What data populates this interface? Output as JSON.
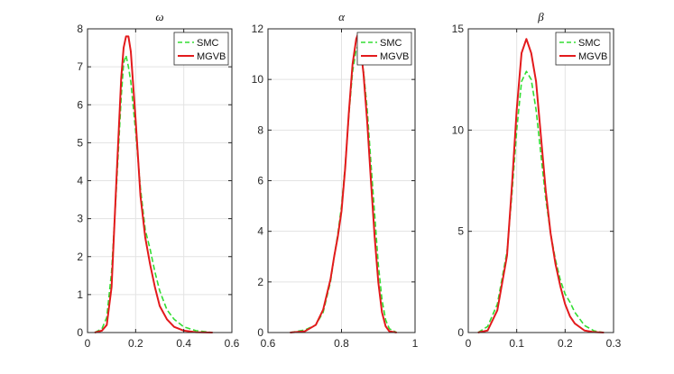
{
  "chart_data": [
    {
      "type": "line",
      "title": "ω",
      "xlim": [
        0,
        0.6
      ],
      "ylim": [
        0,
        8
      ],
      "xticks": [
        0,
        0.2,
        0.4,
        0.6
      ],
      "xtick_labels": [
        "0",
        "0.2",
        "0.4",
        "0.6"
      ],
      "yticks": [
        0,
        1,
        2,
        3,
        4,
        5,
        6,
        7,
        8
      ],
      "ytick_labels": [
        "0",
        "1",
        "2",
        "3",
        "4",
        "5",
        "6",
        "7",
        "8"
      ],
      "grid": true,
      "legend": {
        "position": "top-right",
        "entries": [
          "SMC",
          "MGVB"
        ]
      },
      "series": [
        {
          "name": "SMC",
          "style": "dashed",
          "color": "#33dd33",
          "x": [
            0.03,
            0.06,
            0.08,
            0.1,
            0.12,
            0.14,
            0.15,
            0.16,
            0.17,
            0.18,
            0.2,
            0.22,
            0.24,
            0.26,
            0.28,
            0.3,
            0.33,
            0.36,
            0.4,
            0.45,
            0.52
          ],
          "y": [
            0.0,
            0.1,
            0.4,
            1.6,
            3.8,
            6.2,
            7.1,
            7.3,
            7.0,
            6.6,
            5.3,
            3.8,
            2.7,
            2.2,
            1.6,
            1.1,
            0.6,
            0.35,
            0.15,
            0.05,
            0.0
          ]
        },
        {
          "name": "MGVB",
          "style": "solid",
          "color": "#e31a1c",
          "x": [
            0.03,
            0.06,
            0.08,
            0.1,
            0.12,
            0.14,
            0.15,
            0.16,
            0.17,
            0.18,
            0.2,
            0.22,
            0.24,
            0.26,
            0.28,
            0.3,
            0.33,
            0.36,
            0.4,
            0.45,
            0.52
          ],
          "y": [
            0.0,
            0.05,
            0.2,
            1.2,
            4.0,
            6.7,
            7.5,
            7.8,
            7.8,
            7.4,
            5.6,
            3.6,
            2.5,
            1.8,
            1.2,
            0.7,
            0.35,
            0.15,
            0.05,
            0.01,
            0.0
          ]
        }
      ]
    },
    {
      "type": "line",
      "title": "α",
      "xlim": [
        0.6,
        1
      ],
      "ylim": [
        0,
        12
      ],
      "xticks": [
        0.6,
        0.8,
        1
      ],
      "xtick_labels": [
        "0.6",
        "0.8",
        "1"
      ],
      "yticks": [
        0,
        2,
        4,
        6,
        8,
        10,
        12
      ],
      "ytick_labels": [
        "0",
        "2",
        "4",
        "6",
        "8",
        "10",
        "12"
      ],
      "grid": true,
      "legend": {
        "position": "top-right",
        "entries": [
          "SMC",
          "MGVB"
        ]
      },
      "series": [
        {
          "name": "SMC",
          "style": "dashed",
          "color": "#33dd33",
          "x": [
            0.66,
            0.7,
            0.73,
            0.75,
            0.77,
            0.78,
            0.79,
            0.8,
            0.81,
            0.82,
            0.83,
            0.84,
            0.845,
            0.85,
            0.86,
            0.87,
            0.88,
            0.89,
            0.9,
            0.91,
            0.92,
            0.93,
            0.95
          ],
          "y": [
            0.0,
            0.1,
            0.3,
            0.8,
            2.0,
            3.0,
            3.9,
            5.0,
            6.6,
            8.6,
            10.3,
            11.2,
            11.3,
            11.2,
            10.3,
            8.8,
            6.7,
            4.7,
            2.7,
            1.3,
            0.5,
            0.15,
            0.0
          ]
        },
        {
          "name": "MGVB",
          "style": "solid",
          "color": "#e31a1c",
          "x": [
            0.66,
            0.7,
            0.73,
            0.75,
            0.77,
            0.78,
            0.79,
            0.8,
            0.81,
            0.82,
            0.83,
            0.84,
            0.845,
            0.85,
            0.86,
            0.87,
            0.88,
            0.89,
            0.9,
            0.91,
            0.92,
            0.93,
            0.95
          ],
          "y": [
            0.0,
            0.05,
            0.3,
            0.9,
            2.1,
            3.0,
            3.8,
            4.8,
            6.5,
            8.7,
            10.6,
            11.6,
            11.8,
            11.5,
            10.2,
            8.3,
            6.0,
            3.8,
            2.0,
            0.8,
            0.25,
            0.05,
            0.0
          ]
        }
      ]
    },
    {
      "type": "line",
      "title": "β",
      "xlim": [
        0,
        0.3
      ],
      "ylim": [
        0,
        15
      ],
      "xticks": [
        0,
        0.1,
        0.2,
        0.3
      ],
      "xtick_labels": [
        "0",
        "0.1",
        "0.2",
        "0.3"
      ],
      "yticks": [
        0,
        5,
        10,
        15
      ],
      "ytick_labels": [
        "0",
        "5",
        "10",
        "15"
      ],
      "grid": true,
      "legend": {
        "position": "top-right",
        "entries": [
          "SMC",
          "MGVB"
        ]
      },
      "series": [
        {
          "name": "SMC",
          "style": "dashed",
          "color": "#33dd33",
          "x": [
            0.02,
            0.04,
            0.06,
            0.08,
            0.09,
            0.1,
            0.11,
            0.12,
            0.13,
            0.14,
            0.15,
            0.16,
            0.17,
            0.18,
            0.19,
            0.2,
            0.21,
            0.22,
            0.24,
            0.26,
            0.28
          ],
          "y": [
            0.0,
            0.3,
            1.4,
            4.0,
            6.8,
            10.0,
            12.4,
            12.9,
            12.5,
            11.0,
            8.8,
            6.6,
            4.9,
            3.6,
            2.6,
            1.9,
            1.5,
            1.0,
            0.35,
            0.08,
            0.0
          ]
        },
        {
          "name": "MGVB",
          "style": "solid",
          "color": "#e31a1c",
          "x": [
            0.02,
            0.04,
            0.06,
            0.08,
            0.09,
            0.1,
            0.11,
            0.12,
            0.13,
            0.14,
            0.15,
            0.16,
            0.17,
            0.18,
            0.19,
            0.2,
            0.21,
            0.22,
            0.24,
            0.26,
            0.28
          ],
          "y": [
            0.0,
            0.1,
            1.1,
            3.8,
            7.2,
            11.0,
            13.8,
            14.5,
            13.8,
            12.4,
            9.7,
            7.0,
            4.9,
            3.4,
            2.3,
            1.4,
            0.8,
            0.45,
            0.1,
            0.02,
            0.0
          ]
        }
      ]
    }
  ]
}
